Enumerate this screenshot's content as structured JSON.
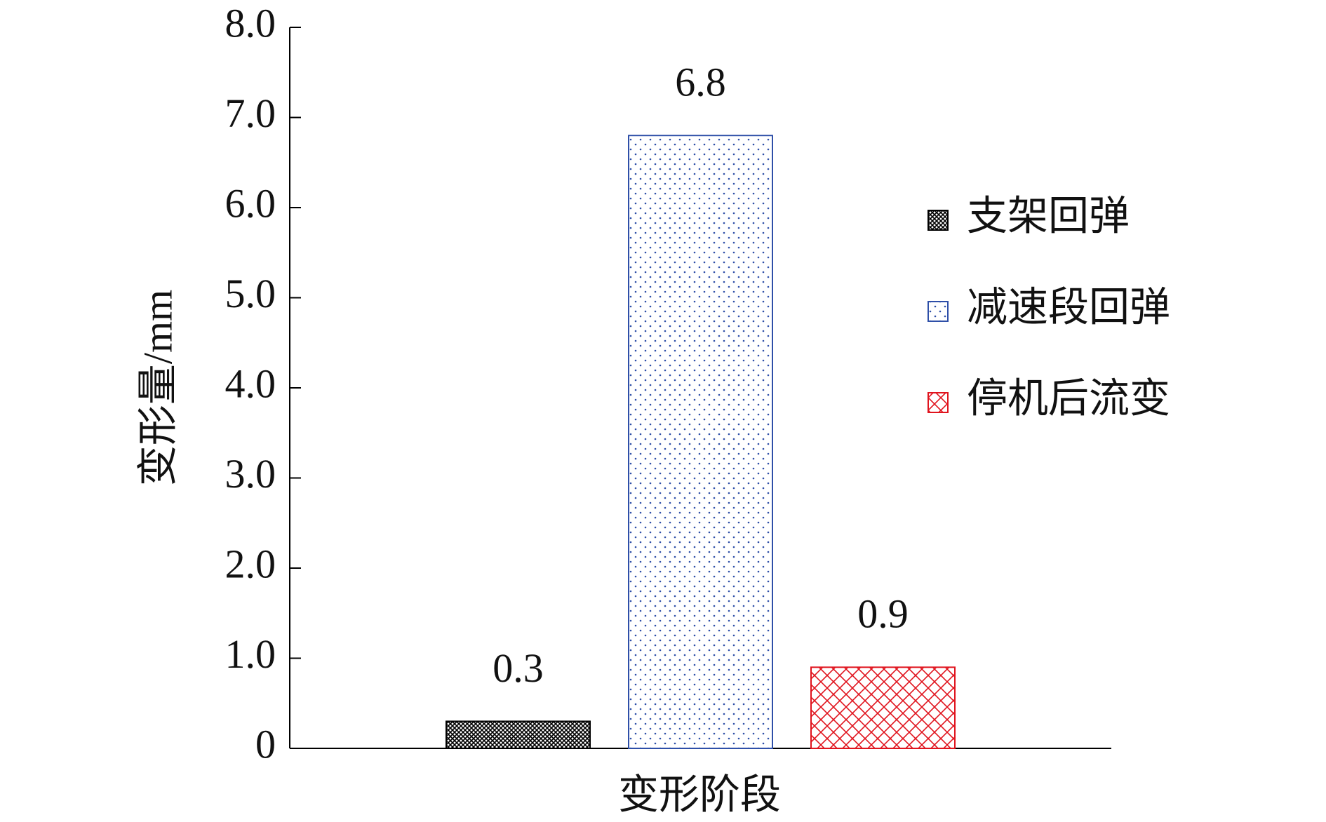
{
  "chart_data": {
    "type": "bar",
    "x_label": "变形阶段",
    "y_label": "变形量/mm",
    "categories": [
      null
    ],
    "series": [
      {
        "name": "支架回弹",
        "color": "#000000",
        "pattern": "crosshatch",
        "values": [
          0.3
        ]
      },
      {
        "name": "减速段回弹",
        "color": "#2e4fa8",
        "pattern": "dots",
        "values": [
          6.8
        ]
      },
      {
        "name": "停机后流变",
        "color": "#e0141e",
        "pattern": "diamonds",
        "values": [
          0.9
        ]
      }
    ],
    "ylim": [
      0,
      8
    ],
    "yticks": [
      0,
      {
        "value": 1,
        "label": "1.0"
      },
      {
        "value": 2,
        "label": "2.0"
      },
      {
        "value": 3,
        "label": "3.0"
      },
      {
        "value": 4,
        "label": "4.0"
      },
      {
        "value": 5,
        "label": "5.0"
      },
      {
        "value": 6,
        "label": "6.0"
      },
      {
        "value": 7,
        "label": "7.0"
      },
      {
        "value": 8,
        "label": "8.0"
      }
    ],
    "legend": "right"
  }
}
